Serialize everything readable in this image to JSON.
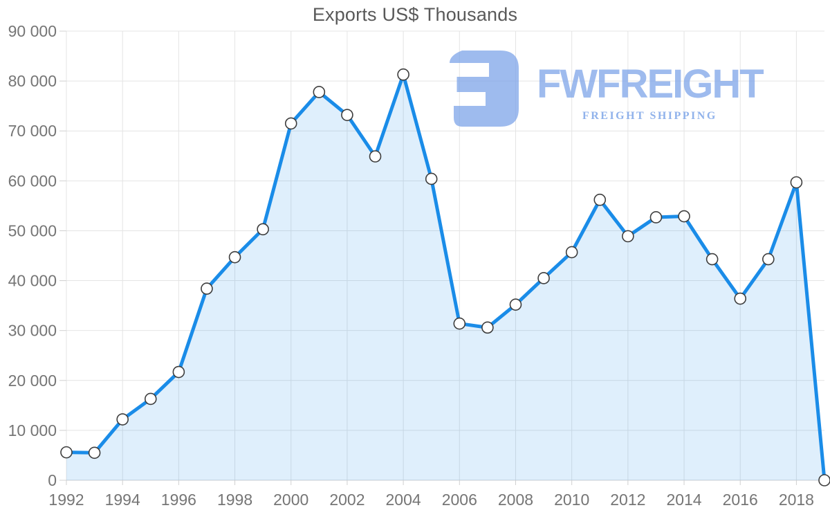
{
  "chart_data": {
    "type": "area",
    "title": "Exports US$ Thousands",
    "x": [
      1992,
      1993,
      1994,
      1995,
      1996,
      1997,
      1998,
      1999,
      2000,
      2001,
      2002,
      2003,
      2004,
      2005,
      2006,
      2007,
      2008,
      2009,
      2010,
      2011,
      2012,
      2013,
      2014,
      2015,
      2016,
      2017,
      2018,
      2019
    ],
    "series": [
      {
        "name": "Exports US$ Thousands",
        "values": [
          5600,
          5500,
          12200,
          16300,
          21700,
          38400,
          44700,
          50300,
          71500,
          77800,
          73200,
          64900,
          81300,
          60400,
          31400,
          30600,
          35200,
          40500,
          45700,
          56200,
          48900,
          52700,
          52900,
          44300,
          36400,
          44300,
          59700,
          0
        ]
      }
    ],
    "xlabel": "",
    "ylabel": "",
    "ylim": [
      0,
      90000
    ],
    "yticks": [
      0,
      10000,
      20000,
      30000,
      40000,
      50000,
      60000,
      70000,
      80000,
      90000
    ],
    "ytick_labels": [
      "0",
      "10 000",
      "20 000",
      "30 000",
      "40 000",
      "50 000",
      "60 000",
      "70 000",
      "80 000",
      "90 000"
    ],
    "xticks": [
      1992,
      1994,
      1996,
      1998,
      2000,
      2002,
      2004,
      2006,
      2008,
      2010,
      2012,
      2014,
      2016,
      2018
    ],
    "xtick_labels": [
      "1992",
      "1994",
      "1996",
      "1998",
      "2000",
      "2002",
      "2004",
      "2006",
      "2008",
      "2010",
      "2012",
      "2014",
      "2016",
      "2018"
    ],
    "grid": true,
    "legend": false,
    "marker": "circle",
    "colors": {
      "line": "#1a8ce8",
      "fill": "rgba(26,140,232,0.14)",
      "marker_fill": "#ffffff",
      "marker_stroke": "#3d3d3d",
      "grid": "#e4e4e4",
      "axis": "#d0d0d0",
      "tick_text": "#757575",
      "title_text": "#595959"
    }
  },
  "watermark": {
    "brand": "FWFREIGHT",
    "tagline": "FREIGHT SHIPPING",
    "color": "#a5c1f0"
  }
}
